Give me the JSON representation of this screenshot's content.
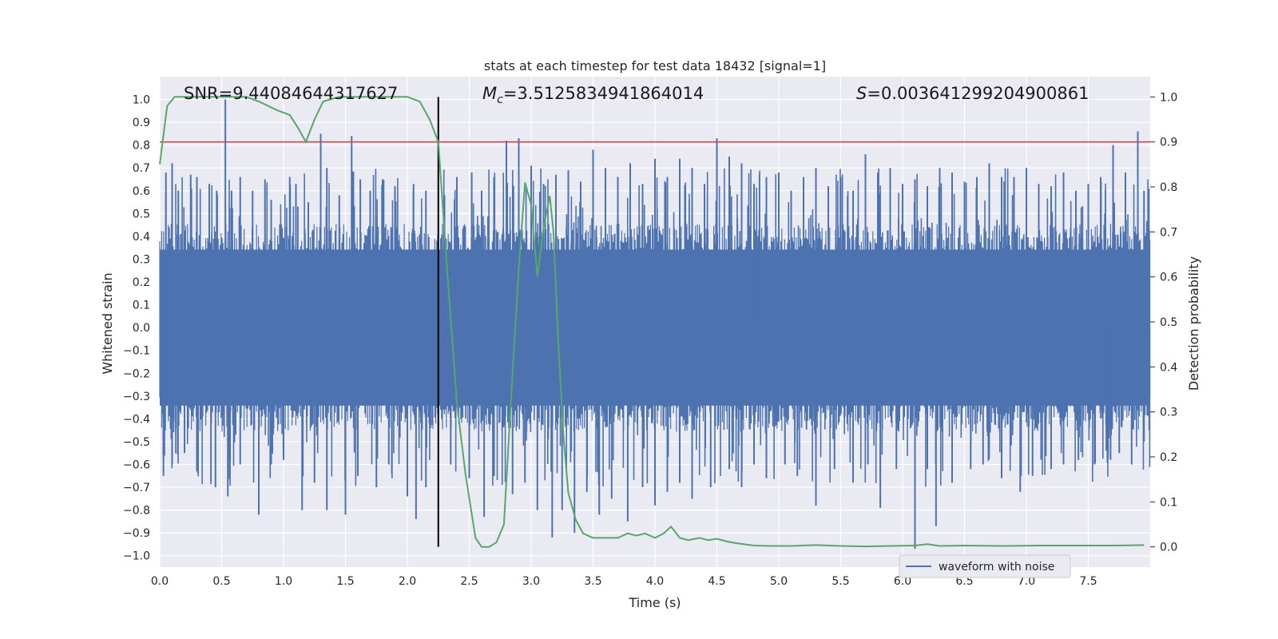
{
  "chart_data": {
    "type": "line",
    "title": "stats at each timestep for test data 18432 [signal=1]",
    "xlabel": "Time (s)",
    "ylabel_left": "Whitened strain",
    "ylabel_right": "Detection probability",
    "xlim": [
      0.0,
      8.0
    ],
    "ylim_left": [
      -1.05,
      1.1
    ],
    "ylim_right": [
      -0.045,
      1.045
    ],
    "x_ticks": [
      "0.0",
      "0.5",
      "1.0",
      "1.5",
      "2.0",
      "2.5",
      "3.0",
      "3.5",
      "4.0",
      "4.5",
      "5.0",
      "5.5",
      "6.0",
      "6.5",
      "7.0",
      "7.5"
    ],
    "x_tick_values": [
      0.0,
      0.5,
      1.0,
      1.5,
      2.0,
      2.5,
      3.0,
      3.5,
      4.0,
      4.5,
      5.0,
      5.5,
      6.0,
      6.5,
      7.0,
      7.5
    ],
    "y_ticks_left": [
      "1.0",
      "0.9",
      "0.8",
      "0.7",
      "0.6",
      "0.5",
      "0.4",
      "0.3",
      "0.2",
      "0.1",
      "0.0",
      "−0.1",
      "−0.2",
      "−0.3",
      "−0.4",
      "−0.5",
      "−0.6",
      "−0.7",
      "−0.8",
      "−0.9",
      "−1.0"
    ],
    "y_tick_values_left": [
      1.0,
      0.9,
      0.8,
      0.7,
      0.6,
      0.5,
      0.4,
      0.3,
      0.2,
      0.1,
      0.0,
      -0.1,
      -0.2,
      -0.3,
      -0.4,
      -0.5,
      -0.6,
      -0.7,
      -0.8,
      -0.9,
      -1.0
    ],
    "y_ticks_right": [
      "1.0",
      "0.9",
      "0.8",
      "0.7",
      "0.6",
      "0.5",
      "0.4",
      "0.3",
      "0.2",
      "0.1",
      "0.0"
    ],
    "y_tick_values_right": [
      1.0,
      0.9,
      0.8,
      0.7,
      0.6,
      0.5,
      0.4,
      0.3,
      0.2,
      0.1,
      0.0
    ],
    "annotations": {
      "snr": "SNR=9.44084644317627",
      "mc_symbol": "M",
      "mc_sub": "c",
      "mc_value": "=3.5125834941864014",
      "s_symbol": "S",
      "s_value": "=0.003641299204900861"
    },
    "threshold_probability": 0.9,
    "marker_time": 2.25,
    "waveform": {
      "name": "waveform with noise",
      "color": "#4c72b0",
      "core_amplitude": 0.38,
      "spikes": [
        {
          "t": 0.05,
          "v": 0.68
        },
        {
          "t": 0.1,
          "v": 0.72
        },
        {
          "t": 0.15,
          "v": 0.6
        },
        {
          "t": 0.25,
          "v": 0.67
        },
        {
          "t": 0.3,
          "v": 0.66
        },
        {
          "t": 0.4,
          "v": 0.63
        },
        {
          "t": 0.46,
          "v": 0.6
        },
        {
          "t": 0.53,
          "v": 1.0
        },
        {
          "t": 0.58,
          "v": 0.6
        },
        {
          "t": 0.65,
          "v": 0.66
        },
        {
          "t": 0.75,
          "v": 0.6
        },
        {
          "t": 0.85,
          "v": 0.65
        },
        {
          "t": 0.9,
          "v": 0.56
        },
        {
          "t": 1.05,
          "v": 0.66
        },
        {
          "t": 1.1,
          "v": 0.63
        },
        {
          "t": 1.2,
          "v": 0.55
        },
        {
          "t": 1.3,
          "v": 0.85
        },
        {
          "t": 1.35,
          "v": 0.7
        },
        {
          "t": 1.45,
          "v": 0.58
        },
        {
          "t": 1.55,
          "v": 0.84
        },
        {
          "t": 1.62,
          "v": 0.65
        },
        {
          "t": 1.7,
          "v": 0.6
        },
        {
          "t": 1.8,
          "v": 0.65
        },
        {
          "t": 1.9,
          "v": 0.62
        },
        {
          "t": 2.05,
          "v": 0.63
        },
        {
          "t": 2.15,
          "v": 0.6
        },
        {
          "t": 2.3,
          "v": 0.58
        },
        {
          "t": 2.4,
          "v": 0.66
        },
        {
          "t": 2.52,
          "v": 0.68
        },
        {
          "t": 2.6,
          "v": 0.6
        },
        {
          "t": 2.7,
          "v": 0.66
        },
        {
          "t": 2.8,
          "v": 0.82
        },
        {
          "t": 2.9,
          "v": 0.83
        },
        {
          "t": 3.0,
          "v": 0.71
        },
        {
          "t": 3.1,
          "v": 0.63
        },
        {
          "t": 3.2,
          "v": 0.67
        },
        {
          "t": 3.3,
          "v": 0.69
        },
        {
          "t": 3.4,
          "v": 0.64
        },
        {
          "t": 3.5,
          "v": 0.78
        },
        {
          "t": 3.6,
          "v": 0.7
        },
        {
          "t": 3.7,
          "v": 0.66
        },
        {
          "t": 3.8,
          "v": 0.72
        },
        {
          "t": 3.9,
          "v": 0.63
        },
        {
          "t": 4.0,
          "v": 0.74
        },
        {
          "t": 4.1,
          "v": 0.66
        },
        {
          "t": 4.2,
          "v": 0.74
        },
        {
          "t": 4.3,
          "v": 0.7
        },
        {
          "t": 4.4,
          "v": 0.63
        },
        {
          "t": 4.5,
          "v": 0.83
        },
        {
          "t": 4.6,
          "v": 0.75
        },
        {
          "t": 4.7,
          "v": 0.72
        },
        {
          "t": 4.8,
          "v": 0.63
        },
        {
          "t": 4.9,
          "v": 0.66
        },
        {
          "t": 5.0,
          "v": 0.68
        },
        {
          "t": 5.1,
          "v": 0.6
        },
        {
          "t": 5.2,
          "v": 0.66
        },
        {
          "t": 5.3,
          "v": 0.7
        },
        {
          "t": 5.4,
          "v": 0.62
        },
        {
          "t": 5.5,
          "v": 0.66
        },
        {
          "t": 5.6,
          "v": 0.6
        },
        {
          "t": 5.7,
          "v": 0.76
        },
        {
          "t": 5.8,
          "v": 0.68
        },
        {
          "t": 5.9,
          "v": 0.7
        },
        {
          "t": 6.0,
          "v": 0.63
        },
        {
          "t": 6.1,
          "v": 0.65
        },
        {
          "t": 6.2,
          "v": 0.62
        },
        {
          "t": 6.3,
          "v": 0.7
        },
        {
          "t": 6.4,
          "v": 0.68
        },
        {
          "t": 6.5,
          "v": 0.64
        },
        {
          "t": 6.6,
          "v": 0.66
        },
        {
          "t": 6.7,
          "v": 0.72
        },
        {
          "t": 6.8,
          "v": 0.66
        },
        {
          "t": 6.9,
          "v": 0.66
        },
        {
          "t": 7.0,
          "v": 0.7
        },
        {
          "t": 7.1,
          "v": 0.63
        },
        {
          "t": 7.2,
          "v": 0.62
        },
        {
          "t": 7.3,
          "v": 0.68
        },
        {
          "t": 7.4,
          "v": 0.6
        },
        {
          "t": 7.5,
          "v": 0.63
        },
        {
          "t": 7.6,
          "v": 0.66
        },
        {
          "t": 7.7,
          "v": 0.8
        },
        {
          "t": 7.8,
          "v": 0.68
        },
        {
          "t": 7.9,
          "v": 0.86
        },
        {
          "t": 7.95,
          "v": 0.6
        },
        {
          "t": 0.03,
          "v": -0.65
        },
        {
          "t": 0.1,
          "v": -0.6
        },
        {
          "t": 0.2,
          "v": -0.55
        },
        {
          "t": 0.3,
          "v": -0.63
        },
        {
          "t": 0.45,
          "v": -0.7
        },
        {
          "t": 0.55,
          "v": -0.74
        },
        {
          "t": 0.65,
          "v": -0.6
        },
        {
          "t": 0.8,
          "v": -0.82
        },
        {
          "t": 0.9,
          "v": -0.6
        },
        {
          "t": 1.0,
          "v": -0.58
        },
        {
          "t": 1.15,
          "v": -0.8
        },
        {
          "t": 1.25,
          "v": -0.68
        },
        {
          "t": 1.35,
          "v": -0.8
        },
        {
          "t": 1.5,
          "v": -0.82
        },
        {
          "t": 1.6,
          "v": -0.65
        },
        {
          "t": 1.75,
          "v": -0.7
        },
        {
          "t": 1.85,
          "v": -0.6
        },
        {
          "t": 2.0,
          "v": -0.74
        },
        {
          "t": 2.07,
          "v": -0.84
        },
        {
          "t": 2.15,
          "v": -0.7
        },
        {
          "t": 2.35,
          "v": -0.6
        },
        {
          "t": 2.5,
          "v": -0.66
        },
        {
          "t": 2.62,
          "v": -0.83
        },
        {
          "t": 2.7,
          "v": -0.65
        },
        {
          "t": 2.85,
          "v": -0.73
        },
        {
          "t": 2.95,
          "v": -0.68
        },
        {
          "t": 3.05,
          "v": -0.8
        },
        {
          "t": 3.17,
          "v": -0.92
        },
        {
          "t": 3.25,
          "v": -0.8
        },
        {
          "t": 3.35,
          "v": -0.9
        },
        {
          "t": 3.45,
          "v": -0.72
        },
        {
          "t": 3.55,
          "v": -0.82
        },
        {
          "t": 3.65,
          "v": -0.75
        },
        {
          "t": 3.78,
          "v": -0.85
        },
        {
          "t": 3.9,
          "v": -0.7
        },
        {
          "t": 4.0,
          "v": -0.78
        },
        {
          "t": 4.1,
          "v": -0.72
        },
        {
          "t": 4.2,
          "v": -0.68
        },
        {
          "t": 4.3,
          "v": -0.75
        },
        {
          "t": 4.45,
          "v": -0.7
        },
        {
          "t": 4.6,
          "v": -0.62
        },
        {
          "t": 4.7,
          "v": -0.7
        },
        {
          "t": 4.8,
          "v": -0.6
        },
        {
          "t": 4.9,
          "v": -0.66
        },
        {
          "t": 5.05,
          "v": -0.6
        },
        {
          "t": 5.15,
          "v": -0.65
        },
        {
          "t": 5.3,
          "v": -0.78
        },
        {
          "t": 5.45,
          "v": -0.62
        },
        {
          "t": 5.6,
          "v": -0.68
        },
        {
          "t": 5.72,
          "v": -0.6
        },
        {
          "t": 5.82,
          "v": -0.79
        },
        {
          "t": 5.95,
          "v": -0.62
        },
        {
          "t": 6.1,
          "v": -0.97
        },
        {
          "t": 6.2,
          "v": -0.62
        },
        {
          "t": 6.27,
          "v": -0.87
        },
        {
          "t": 6.4,
          "v": -0.68
        },
        {
          "t": 6.55,
          "v": -0.62
        },
        {
          "t": 6.65,
          "v": -0.6
        },
        {
          "t": 6.8,
          "v": -0.66
        },
        {
          "t": 6.95,
          "v": -0.72
        },
        {
          "t": 7.05,
          "v": -0.65
        },
        {
          "t": 7.2,
          "v": -0.62
        },
        {
          "t": 7.3,
          "v": -0.6
        },
        {
          "t": 7.42,
          "v": -0.58
        },
        {
          "t": 7.55,
          "v": -0.6
        },
        {
          "t": 7.68,
          "v": -0.58
        },
        {
          "t": 7.75,
          "v": -0.55
        },
        {
          "t": 7.85,
          "v": -0.6
        },
        {
          "t": 7.95,
          "v": -0.5
        }
      ]
    },
    "probability": {
      "color": "#55a868",
      "x": [
        0.0,
        0.06,
        0.12,
        0.2,
        0.3,
        0.5,
        0.7,
        0.8,
        0.95,
        1.05,
        1.12,
        1.18,
        1.25,
        1.32,
        1.45,
        1.6,
        1.8,
        2.0,
        2.1,
        2.18,
        2.25,
        2.32,
        2.4,
        2.47,
        2.55,
        2.6,
        2.66,
        2.72,
        2.78,
        2.84,
        2.9,
        2.95,
        3.0,
        3.05,
        3.1,
        3.15,
        3.18,
        3.22,
        3.26,
        3.3,
        3.36,
        3.42,
        3.5,
        3.6,
        3.7,
        3.78,
        3.85,
        3.92,
        4.0,
        4.07,
        4.13,
        4.2,
        4.27,
        4.36,
        4.43,
        4.5,
        4.58,
        4.66,
        4.8,
        4.95,
        5.1,
        5.3,
        5.5,
        5.7,
        5.9,
        6.1,
        6.2,
        6.3,
        6.5,
        6.8,
        7.1,
        7.4,
        7.7,
        7.95
      ],
      "y": [
        0.85,
        0.98,
        1.0,
        1.0,
        1.0,
        1.0,
        1.0,
        0.99,
        0.97,
        0.96,
        0.93,
        0.9,
        0.95,
        0.99,
        1.0,
        1.0,
        1.0,
        1.0,
        0.99,
        0.95,
        0.9,
        0.62,
        0.32,
        0.16,
        0.02,
        0.0,
        0.0,
        0.01,
        0.05,
        0.34,
        0.62,
        0.81,
        0.76,
        0.6,
        0.71,
        0.78,
        0.7,
        0.45,
        0.25,
        0.12,
        0.06,
        0.03,
        0.02,
        0.02,
        0.02,
        0.03,
        0.025,
        0.03,
        0.02,
        0.03,
        0.045,
        0.02,
        0.015,
        0.02,
        0.015,
        0.018,
        0.012,
        0.008,
        0.003,
        0.002,
        0.002,
        0.004,
        0.002,
        0.001,
        0.002,
        0.003,
        0.006,
        0.002,
        0.003,
        0.002,
        0.003,
        0.003,
        0.003,
        0.004
      ]
    },
    "threshold_color": "#c44e52",
    "legend": {
      "position": "lower-right"
    },
    "grid": true
  }
}
